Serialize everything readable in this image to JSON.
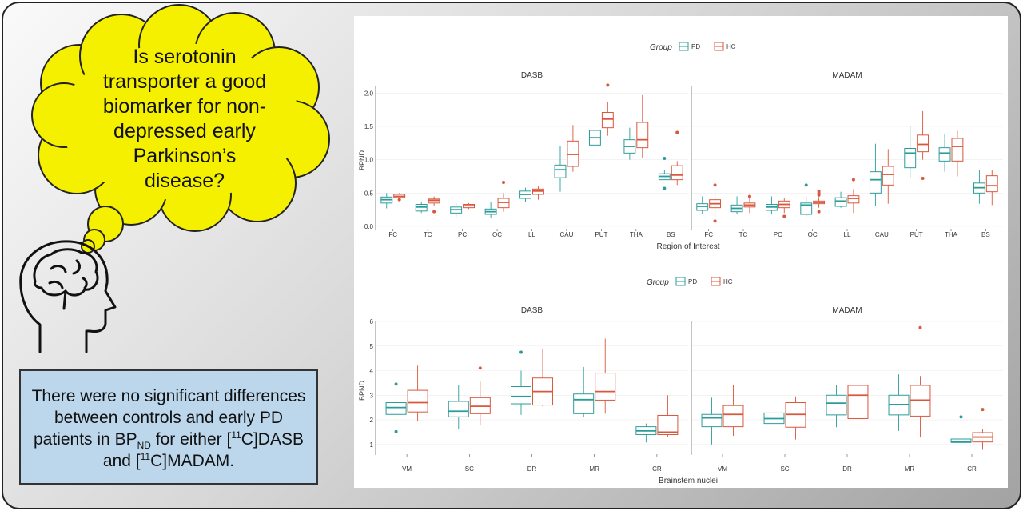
{
  "question": "Is serotonin transporter a good biomarker for non-depressed early Parkinson’s disease?",
  "conclusion": {
    "p1": "There were no significant differences between controls and early PD patients in BP",
    "sub": "ND",
    "p2": " for either [",
    "sup1": "11",
    "p3": "C]DASB and [",
    "sup2": "11",
    "p4": "C]MADAM."
  },
  "colors": {
    "PD": "#2a9d9a",
    "HC": "#d9573d",
    "cloud": "#f5f000",
    "conclusion_bg": "#bcd6ec"
  },
  "icons": {
    "brain_head": "brain-head-icon"
  },
  "chart_data": [
    {
      "type": "box",
      "legend_title": "Group",
      "legend": [
        "PD",
        "HC"
      ],
      "xlabel": "Region of Interest",
      "ylabel": "BPND",
      "ylim": [
        0,
        2.1
      ],
      "yticks": [
        "0.0",
        "0.5",
        "1.0",
        "1.5",
        "2.0"
      ],
      "categories": [
        "FC",
        "TC",
        "PC",
        "OC",
        "LL",
        "CAU",
        "PUT",
        "THA",
        "BS"
      ],
      "facets": [
        {
          "title": "DASB",
          "series": [
            {
              "name": "PD",
              "boxes": [
                {
                  "min": 0.27,
                  "q1": 0.35,
                  "median": 0.4,
                  "q3": 0.44,
                  "max": 0.5,
                  "outliers": []
                },
                {
                  "min": 0.2,
                  "q1": 0.23,
                  "median": 0.29,
                  "q3": 0.33,
                  "max": 0.37,
                  "outliers": []
                },
                {
                  "min": 0.14,
                  "q1": 0.2,
                  "median": 0.25,
                  "q3": 0.29,
                  "max": 0.35,
                  "outliers": []
                },
                {
                  "min": 0.12,
                  "q1": 0.18,
                  "median": 0.22,
                  "q3": 0.26,
                  "max": 0.36,
                  "outliers": []
                },
                {
                  "min": 0.37,
                  "q1": 0.42,
                  "median": 0.48,
                  "q3": 0.53,
                  "max": 0.58,
                  "outliers": []
                },
                {
                  "min": 0.52,
                  "q1": 0.73,
                  "median": 0.85,
                  "q3": 0.92,
                  "max": 1.2,
                  "outliers": []
                },
                {
                  "min": 1.1,
                  "q1": 1.22,
                  "median": 1.33,
                  "q3": 1.44,
                  "max": 1.55,
                  "outliers": []
                },
                {
                  "min": 1.0,
                  "q1": 1.1,
                  "median": 1.2,
                  "q3": 1.3,
                  "max": 1.48,
                  "outliers": []
                },
                {
                  "min": 0.7,
                  "q1": 0.7,
                  "median": 0.75,
                  "q3": 0.79,
                  "max": 0.84,
                  "outliers": [
                    1.02,
                    0.57
                  ]
                }
              ]
            },
            {
              "name": "HC",
              "boxes": [
                {
                  "min": 0.38,
                  "q1": 0.43,
                  "median": 0.45,
                  "q3": 0.48,
                  "max": 0.5,
                  "outliers": [
                    0.4
                  ]
                },
                {
                  "min": 0.3,
                  "q1": 0.35,
                  "median": 0.39,
                  "q3": 0.41,
                  "max": 0.45,
                  "outliers": [
                    0.22
                  ]
                },
                {
                  "min": 0.26,
                  "q1": 0.28,
                  "median": 0.31,
                  "q3": 0.33,
                  "max": 0.35,
                  "outliers": []
                },
                {
                  "min": 0.22,
                  "q1": 0.28,
                  "median": 0.36,
                  "q3": 0.42,
                  "max": 0.5,
                  "outliers": [
                    0.66
                  ]
                },
                {
                  "min": 0.4,
                  "q1": 0.48,
                  "median": 0.53,
                  "q3": 0.56,
                  "max": 0.6,
                  "outliers": []
                },
                {
                  "min": 0.82,
                  "q1": 0.9,
                  "median": 1.08,
                  "q3": 1.28,
                  "max": 1.52,
                  "outliers": []
                },
                {
                  "min": 1.36,
                  "q1": 1.48,
                  "median": 1.61,
                  "q3": 1.71,
                  "max": 1.86,
                  "outliers": [
                    2.12
                  ]
                },
                {
                  "min": 1.03,
                  "q1": 1.18,
                  "median": 1.3,
                  "q3": 1.56,
                  "max": 1.97,
                  "outliers": []
                },
                {
                  "min": 0.62,
                  "q1": 0.7,
                  "median": 0.77,
                  "q3": 0.91,
                  "max": 0.98,
                  "outliers": [
                    1.41
                  ]
                }
              ]
            }
          ]
        },
        {
          "title": "MADAM",
          "series": [
            {
              "name": "PD",
              "boxes": [
                {
                  "min": 0.18,
                  "q1": 0.24,
                  "median": 0.3,
                  "q3": 0.34,
                  "max": 0.45,
                  "outliers": []
                },
                {
                  "min": 0.18,
                  "q1": 0.22,
                  "median": 0.27,
                  "q3": 0.32,
                  "max": 0.45,
                  "outliers": []
                },
                {
                  "min": 0.18,
                  "q1": 0.24,
                  "median": 0.29,
                  "q3": 0.33,
                  "max": 0.45,
                  "outliers": []
                },
                {
                  "min": 0.15,
                  "q1": 0.18,
                  "median": 0.32,
                  "q3": 0.35,
                  "max": 0.44,
                  "outliers": [
                    0.62
                  ]
                },
                {
                  "min": 0.28,
                  "q1": 0.3,
                  "median": 0.38,
                  "q3": 0.43,
                  "max": 0.52,
                  "outliers": []
                },
                {
                  "min": 0.3,
                  "q1": 0.5,
                  "median": 0.7,
                  "q3": 0.82,
                  "max": 1.24,
                  "outliers": []
                },
                {
                  "min": 0.72,
                  "q1": 0.88,
                  "median": 1.1,
                  "q3": 1.17,
                  "max": 1.5,
                  "outliers": []
                },
                {
                  "min": 0.82,
                  "q1": 0.98,
                  "median": 1.1,
                  "q3": 1.18,
                  "max": 1.38,
                  "outliers": []
                },
                {
                  "min": 0.34,
                  "q1": 0.5,
                  "median": 0.58,
                  "q3": 0.65,
                  "max": 0.85,
                  "outliers": []
                }
              ]
            },
            {
              "name": "HC",
              "boxes": [
                {
                  "min": 0.14,
                  "q1": 0.28,
                  "median": 0.34,
                  "q3": 0.4,
                  "max": 0.52,
                  "outliers": [
                    0.62,
                    0.08
                  ]
                },
                {
                  "min": 0.2,
                  "q1": 0.29,
                  "median": 0.32,
                  "q3": 0.35,
                  "max": 0.43,
                  "outliers": [
                    0.45
                  ]
                },
                {
                  "min": 0.2,
                  "q1": 0.28,
                  "median": 0.33,
                  "q3": 0.38,
                  "max": 0.42,
                  "outliers": [
                    0.15
                  ]
                },
                {
                  "min": 0.28,
                  "q1": 0.34,
                  "median": 0.36,
                  "q3": 0.38,
                  "max": 0.44,
                  "outliers": [
                    0.53,
                    0.5,
                    0.47,
                    0.22
                  ]
                },
                {
                  "min": 0.2,
                  "q1": 0.35,
                  "median": 0.42,
                  "q3": 0.46,
                  "max": 0.56,
                  "outliers": [
                    0.7
                  ]
                },
                {
                  "min": 0.34,
                  "q1": 0.62,
                  "median": 0.78,
                  "q3": 0.9,
                  "max": 1.16,
                  "outliers": []
                },
                {
                  "min": 1.0,
                  "q1": 1.12,
                  "median": 1.23,
                  "q3": 1.37,
                  "max": 1.73,
                  "outliers": [
                    0.72
                  ]
                },
                {
                  "min": 0.75,
                  "q1": 0.98,
                  "median": 1.2,
                  "q3": 1.32,
                  "max": 1.43,
                  "outliers": []
                },
                {
                  "min": 0.32,
                  "q1": 0.52,
                  "median": 0.61,
                  "q3": 0.76,
                  "max": 0.85,
                  "outliers": []
                }
              ]
            }
          ]
        }
      ]
    },
    {
      "type": "box",
      "legend_title": "Group",
      "legend": [
        "PD",
        "HC"
      ],
      "xlabel": "Brainstem nuclei",
      "ylabel": "BPND",
      "ylim": [
        0.7,
        6
      ],
      "yticks": [
        "1",
        "2",
        "3",
        "4",
        "5",
        "6"
      ],
      "categories": [
        "VM",
        "SC",
        "DR",
        "MR",
        "CR"
      ],
      "facets": [
        {
          "title": "DASB",
          "series": [
            {
              "name": "PD",
              "boxes": [
                {
                  "min": 2.0,
                  "q1": 2.22,
                  "median": 2.5,
                  "q3": 2.7,
                  "max": 2.9,
                  "outliers": [
                    3.45,
                    1.52
                  ]
                },
                {
                  "min": 1.62,
                  "q1": 2.12,
                  "median": 2.35,
                  "q3": 2.75,
                  "max": 3.4,
                  "outliers": []
                },
                {
                  "min": 2.2,
                  "q1": 2.65,
                  "median": 2.95,
                  "q3": 3.35,
                  "max": 4.0,
                  "outliers": [
                    4.75
                  ]
                },
                {
                  "min": 2.1,
                  "q1": 2.25,
                  "median": 2.82,
                  "q3": 3.05,
                  "max": 4.15,
                  "outliers": []
                },
                {
                  "min": 1.08,
                  "q1": 1.4,
                  "median": 1.55,
                  "q3": 1.72,
                  "max": 1.85,
                  "outliers": []
                }
              ]
            },
            {
              "name": "HC",
              "boxes": [
                {
                  "min": 1.95,
                  "q1": 2.32,
                  "median": 2.7,
                  "q3": 3.2,
                  "max": 4.2,
                  "outliers": []
                },
                {
                  "min": 1.8,
                  "q1": 2.25,
                  "median": 2.55,
                  "q3": 2.9,
                  "max": 3.55,
                  "outliers": [
                    4.1
                  ]
                },
                {
                  "min": 2.55,
                  "q1": 2.6,
                  "median": 3.15,
                  "q3": 3.7,
                  "max": 4.9,
                  "outliers": []
                },
                {
                  "min": 2.25,
                  "q1": 2.8,
                  "median": 3.15,
                  "q3": 3.9,
                  "max": 5.3,
                  "outliers": []
                },
                {
                  "min": 1.3,
                  "q1": 1.4,
                  "median": 1.5,
                  "q3": 2.18,
                  "max": 3.0,
                  "outliers": []
                }
              ]
            }
          ]
        },
        {
          "title": "MADAM",
          "series": [
            {
              "name": "PD",
              "boxes": [
                {
                  "min": 1.0,
                  "q1": 1.72,
                  "median": 2.08,
                  "q3": 2.22,
                  "max": 2.9,
                  "outliers": []
                },
                {
                  "min": 1.48,
                  "q1": 1.85,
                  "median": 2.05,
                  "q3": 2.28,
                  "max": 2.72,
                  "outliers": []
                },
                {
                  "min": 1.7,
                  "q1": 2.2,
                  "median": 2.68,
                  "q3": 3.0,
                  "max": 3.4,
                  "outliers": []
                },
                {
                  "min": 1.55,
                  "q1": 2.2,
                  "median": 2.62,
                  "q3": 3.0,
                  "max": 3.85,
                  "outliers": []
                },
                {
                  "min": 0.98,
                  "q1": 1.08,
                  "median": 1.12,
                  "q3": 1.22,
                  "max": 1.35,
                  "outliers": [
                    2.12
                  ]
                }
              ]
            },
            {
              "name": "HC",
              "boxes": [
                {
                  "min": 1.35,
                  "q1": 1.72,
                  "median": 2.22,
                  "q3": 2.58,
                  "max": 3.4,
                  "outliers": []
                },
                {
                  "min": 1.2,
                  "q1": 1.7,
                  "median": 2.22,
                  "q3": 2.7,
                  "max": 2.95,
                  "outliers": []
                },
                {
                  "min": 1.55,
                  "q1": 2.05,
                  "median": 3.0,
                  "q3": 3.4,
                  "max": 4.25,
                  "outliers": []
                },
                {
                  "min": 1.28,
                  "q1": 2.15,
                  "median": 2.8,
                  "q3": 3.4,
                  "max": 3.78,
                  "outliers": [
                    5.75
                  ]
                },
                {
                  "min": 0.78,
                  "q1": 1.1,
                  "median": 1.3,
                  "q3": 1.48,
                  "max": 1.62,
                  "outliers": [
                    2.42
                  ]
                }
              ]
            }
          ]
        }
      ]
    }
  ]
}
